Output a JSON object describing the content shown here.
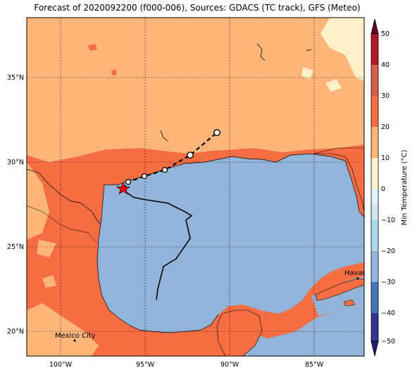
{
  "title": "Forecast of 2020092200 (f000-006), Sources: GDACS (TC track), GFS (Meteo)",
  "map": {
    "lon_ticks": [
      "100°W",
      "95°W",
      "90°W",
      "85°W"
    ],
    "lat_ticks": [
      "35°N",
      "30°N",
      "25°N",
      "20°N"
    ],
    "colors": {
      "land_cold": "#fdb57a",
      "land_warm": "#f46d43",
      "land_cool": "#fff0c8",
      "water": "#92b4d9",
      "coastline": "#000000",
      "track": "#000000",
      "current_position": "#ff0000"
    },
    "cities": [
      {
        "name": "Mexico City"
      },
      {
        "name": "Havana"
      }
    ],
    "icons": [
      "red-star-icon",
      "open-circle-icon",
      "city-dot-icon"
    ]
  },
  "colorbar": {
    "label": "Min Temperature (°C)",
    "ticks": [
      "50",
      "40",
      "30",
      "20",
      "10",
      "0",
      "−10",
      "−20",
      "−30",
      "−40",
      "−50"
    ],
    "colors": [
      "#67001f",
      "#b2182b",
      "#d6604d",
      "#f46d43",
      "#fdb57a",
      "#fff0c8",
      "#e0f3f8",
      "#abd9e9",
      "#92b4d9",
      "#4575b4",
      "#313695",
      "#1f1f7a"
    ]
  }
}
